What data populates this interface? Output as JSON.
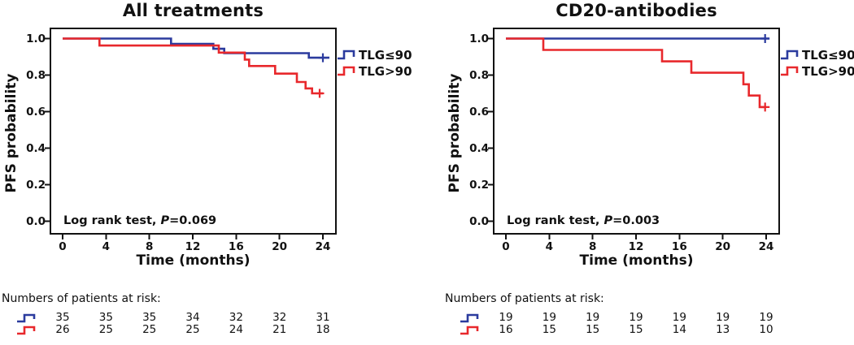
{
  "figure": {
    "background": "#ffffff",
    "axis_color": "#111111",
    "blue_hex": "#2b3b9e",
    "red_hex": "#e8282c"
  },
  "chart_data": [
    {
      "type": "line",
      "subtype": "kaplan-meier-step",
      "title": "All treatments",
      "xlabel": "Time (months)",
      "ylabel": "PFS probability",
      "xticks": [
        "0",
        "4",
        "8",
        "12",
        "16",
        "20",
        "24"
      ],
      "yticks": [
        "1.0",
        "0.8",
        "0.6",
        "0.4",
        "0.2",
        "0.0"
      ],
      "xlim": [
        0,
        25.5
      ],
      "ylim": [
        0,
        1.08
      ],
      "grid": false,
      "legend_position": "right-outside",
      "logrank": {
        "prefix": "Log rank test, ",
        "p_symbol": "P",
        "p_value": "=0.069"
      },
      "legend": [
        {
          "label": "TLG≤90",
          "color": "#2b3b9e"
        },
        {
          "label": "TLG>90",
          "color": "#e8282c"
        }
      ],
      "series": [
        {
          "name": "TLG≤90",
          "color": "#2b3b9e",
          "points": [
            [
              0,
              1.0
            ],
            [
              10.0,
              1.0
            ],
            [
              10.0,
              0.971
            ],
            [
              13.9,
              0.971
            ],
            [
              13.9,
              0.944
            ],
            [
              14.9,
              0.944
            ],
            [
              14.9,
              0.92
            ],
            [
              22.7,
              0.92
            ],
            [
              22.7,
              0.895
            ],
            [
              24.6,
              0.895
            ]
          ],
          "censors": [
            [
              24.0,
              0.895
            ]
          ]
        },
        {
          "name": "TLG>90",
          "color": "#e8282c",
          "points": [
            [
              0,
              1.0
            ],
            [
              3.4,
              1.0
            ],
            [
              3.4,
              0.962
            ],
            [
              14.4,
              0.962
            ],
            [
              14.4,
              0.923
            ],
            [
              16.8,
              0.923
            ],
            [
              16.8,
              0.885
            ],
            [
              17.2,
              0.885
            ],
            [
              17.2,
              0.85
            ],
            [
              19.6,
              0.85
            ],
            [
              19.6,
              0.808
            ],
            [
              21.6,
              0.808
            ],
            [
              21.6,
              0.762
            ],
            [
              22.4,
              0.762
            ],
            [
              22.4,
              0.727
            ],
            [
              23.0,
              0.727
            ],
            [
              23.0,
              0.7
            ],
            [
              24.0,
              0.7
            ]
          ],
          "censors": [
            [
              23.7,
              0.7
            ]
          ]
        }
      ],
      "risk_table": {
        "title": "Numbers of patients at risk:",
        "times": [
          0,
          4,
          8,
          12,
          16,
          20,
          24
        ],
        "rows": [
          {
            "series": "TLG≤90",
            "color": "#2b3b9e",
            "counts": [
              "35",
              "35",
              "35",
              "34",
              "32",
              "32",
              "31"
            ]
          },
          {
            "series": "TLG>90",
            "color": "#e8282c",
            "counts": [
              "26",
              "25",
              "25",
              "25",
              "24",
              "21",
              "18"
            ]
          }
        ]
      }
    },
    {
      "type": "line",
      "subtype": "kaplan-meier-step",
      "title": "CD20-antibodies",
      "xlabel": "Time (months)",
      "ylabel": "PFS probability",
      "xticks": [
        "0",
        "4",
        "8",
        "12",
        "16",
        "20",
        "24"
      ],
      "yticks": [
        "1.0",
        "0.8",
        "0.6",
        "0.4",
        "0.2",
        "0.0"
      ],
      "xlim": [
        0,
        25.5
      ],
      "ylim": [
        0,
        1.08
      ],
      "grid": false,
      "legend_position": "right-outside",
      "logrank": {
        "prefix": "Log rank test, ",
        "p_symbol": "P",
        "p_value": "=0.003"
      },
      "legend": [
        {
          "label": "TLG≤90",
          "color": "#2b3b9e"
        },
        {
          "label": "TLG>90",
          "color": "#e8282c"
        }
      ],
      "series": [
        {
          "name": "TLG≤90",
          "color": "#2b3b9e",
          "points": [
            [
              0,
              1.0
            ],
            [
              24.3,
              1.0
            ]
          ],
          "censors": [
            [
              23.9,
              1.0
            ]
          ]
        },
        {
          "name": "TLG>90",
          "color": "#e8282c",
          "points": [
            [
              0,
              1.0
            ],
            [
              3.45,
              1.0
            ],
            [
              3.45,
              0.938
            ],
            [
              14.4,
              0.938
            ],
            [
              14.4,
              0.875
            ],
            [
              17.1,
              0.875
            ],
            [
              17.1,
              0.813
            ],
            [
              21.9,
              0.813
            ],
            [
              21.9,
              0.75
            ],
            [
              22.4,
              0.75
            ],
            [
              22.4,
              0.688
            ],
            [
              23.4,
              0.688
            ],
            [
              23.4,
              0.625
            ],
            [
              24.0,
              0.625
            ]
          ],
          "censors": [
            [
              23.9,
              0.625
            ]
          ]
        }
      ],
      "risk_table": {
        "title": "Numbers of patients at risk:",
        "times": [
          0,
          4,
          8,
          12,
          16,
          20,
          24
        ],
        "rows": [
          {
            "series": "TLG≤90",
            "color": "#2b3b9e",
            "counts": [
              "19",
              "19",
              "19",
              "19",
              "19",
              "19",
              "19"
            ]
          },
          {
            "series": "TLG>90",
            "color": "#e8282c",
            "counts": [
              "16",
              "15",
              "15",
              "15",
              "14",
              "13",
              "10"
            ]
          }
        ]
      }
    }
  ]
}
